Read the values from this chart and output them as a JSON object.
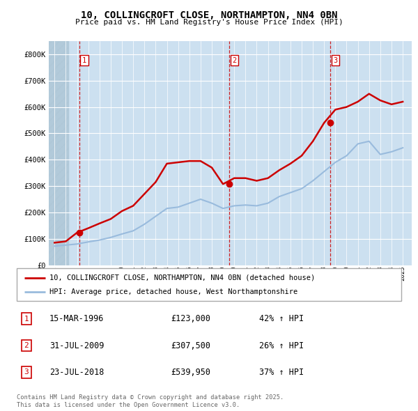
{
  "title_line1": "10, COLLINGCROFT CLOSE, NORTHAMPTON, NN4 0BN",
  "title_line2": "Price paid vs. HM Land Registry's House Price Index (HPI)",
  "bg_color": "#cce0f0",
  "grid_color": "#ffffff",
  "red_line_color": "#cc0000",
  "blue_line_color": "#99bbdd",
  "ylim": [
    0,
    850000
  ],
  "yticks": [
    0,
    100000,
    200000,
    300000,
    400000,
    500000,
    600000,
    700000,
    800000
  ],
  "ytick_labels": [
    "£0",
    "£100K",
    "£200K",
    "£300K",
    "£400K",
    "£500K",
    "£600K",
    "£700K",
    "£800K"
  ],
  "sale_year_floats": [
    1996.21,
    2009.58,
    2018.56
  ],
  "sale_prices": [
    123000,
    307500,
    539950
  ],
  "sale_labels": [
    "1",
    "2",
    "3"
  ],
  "transaction_table": [
    {
      "num": "1",
      "date": "15-MAR-1996",
      "price": "£123,000",
      "change": "42% ↑ HPI"
    },
    {
      "num": "2",
      "date": "31-JUL-2009",
      "price": "£307,500",
      "change": "26% ↑ HPI"
    },
    {
      "num": "3",
      "date": "23-JUL-2018",
      "price": "£539,950",
      "change": "37% ↑ HPI"
    }
  ],
  "legend_line1": "10, COLLINGCROFT CLOSE, NORTHAMPTON, NN4 0BN (detached house)",
  "legend_line2": "HPI: Average price, detached house, West Northamptonshire",
  "footer": "Contains HM Land Registry data © Crown copyright and database right 2025.\nThis data is licensed under the Open Government Licence v3.0.",
  "hpi_years": [
    1994,
    1995,
    1996,
    1997,
    1998,
    1999,
    2000,
    2001,
    2002,
    2003,
    2004,
    2005,
    2006,
    2007,
    2008,
    2009,
    2010,
    2011,
    2012,
    2013,
    2014,
    2015,
    2016,
    2017,
    2018,
    2019,
    2020,
    2021,
    2022,
    2023,
    2024,
    2025
  ],
  "hpi_values": [
    72000,
    76000,
    80000,
    88000,
    95000,
    105000,
    118000,
    130000,
    155000,
    185000,
    215000,
    220000,
    235000,
    250000,
    235000,
    215000,
    225000,
    228000,
    225000,
    235000,
    260000,
    275000,
    290000,
    320000,
    355000,
    390000,
    415000,
    460000,
    470000,
    420000,
    430000,
    445000
  ],
  "price_years": [
    1994,
    1995,
    1996,
    1997,
    1998,
    1999,
    2000,
    2001,
    2002,
    2003,
    2004,
    2005,
    2006,
    2007,
    2008,
    2009,
    2010,
    2011,
    2012,
    2013,
    2014,
    2015,
    2016,
    2017,
    2018,
    2019,
    2020,
    2021,
    2022,
    2023,
    2024,
    2025
  ],
  "price_values": [
    85000,
    90000,
    123000,
    140000,
    158000,
    175000,
    205000,
    225000,
    270000,
    315000,
    385000,
    390000,
    395000,
    395000,
    370000,
    307500,
    330000,
    330000,
    320000,
    330000,
    360000,
    385000,
    415000,
    470000,
    539950,
    590000,
    600000,
    620000,
    650000,
    625000,
    610000,
    620000
  ],
  "xlim": [
    1993.5,
    2025.8
  ],
  "hatch_end": 1995.3
}
